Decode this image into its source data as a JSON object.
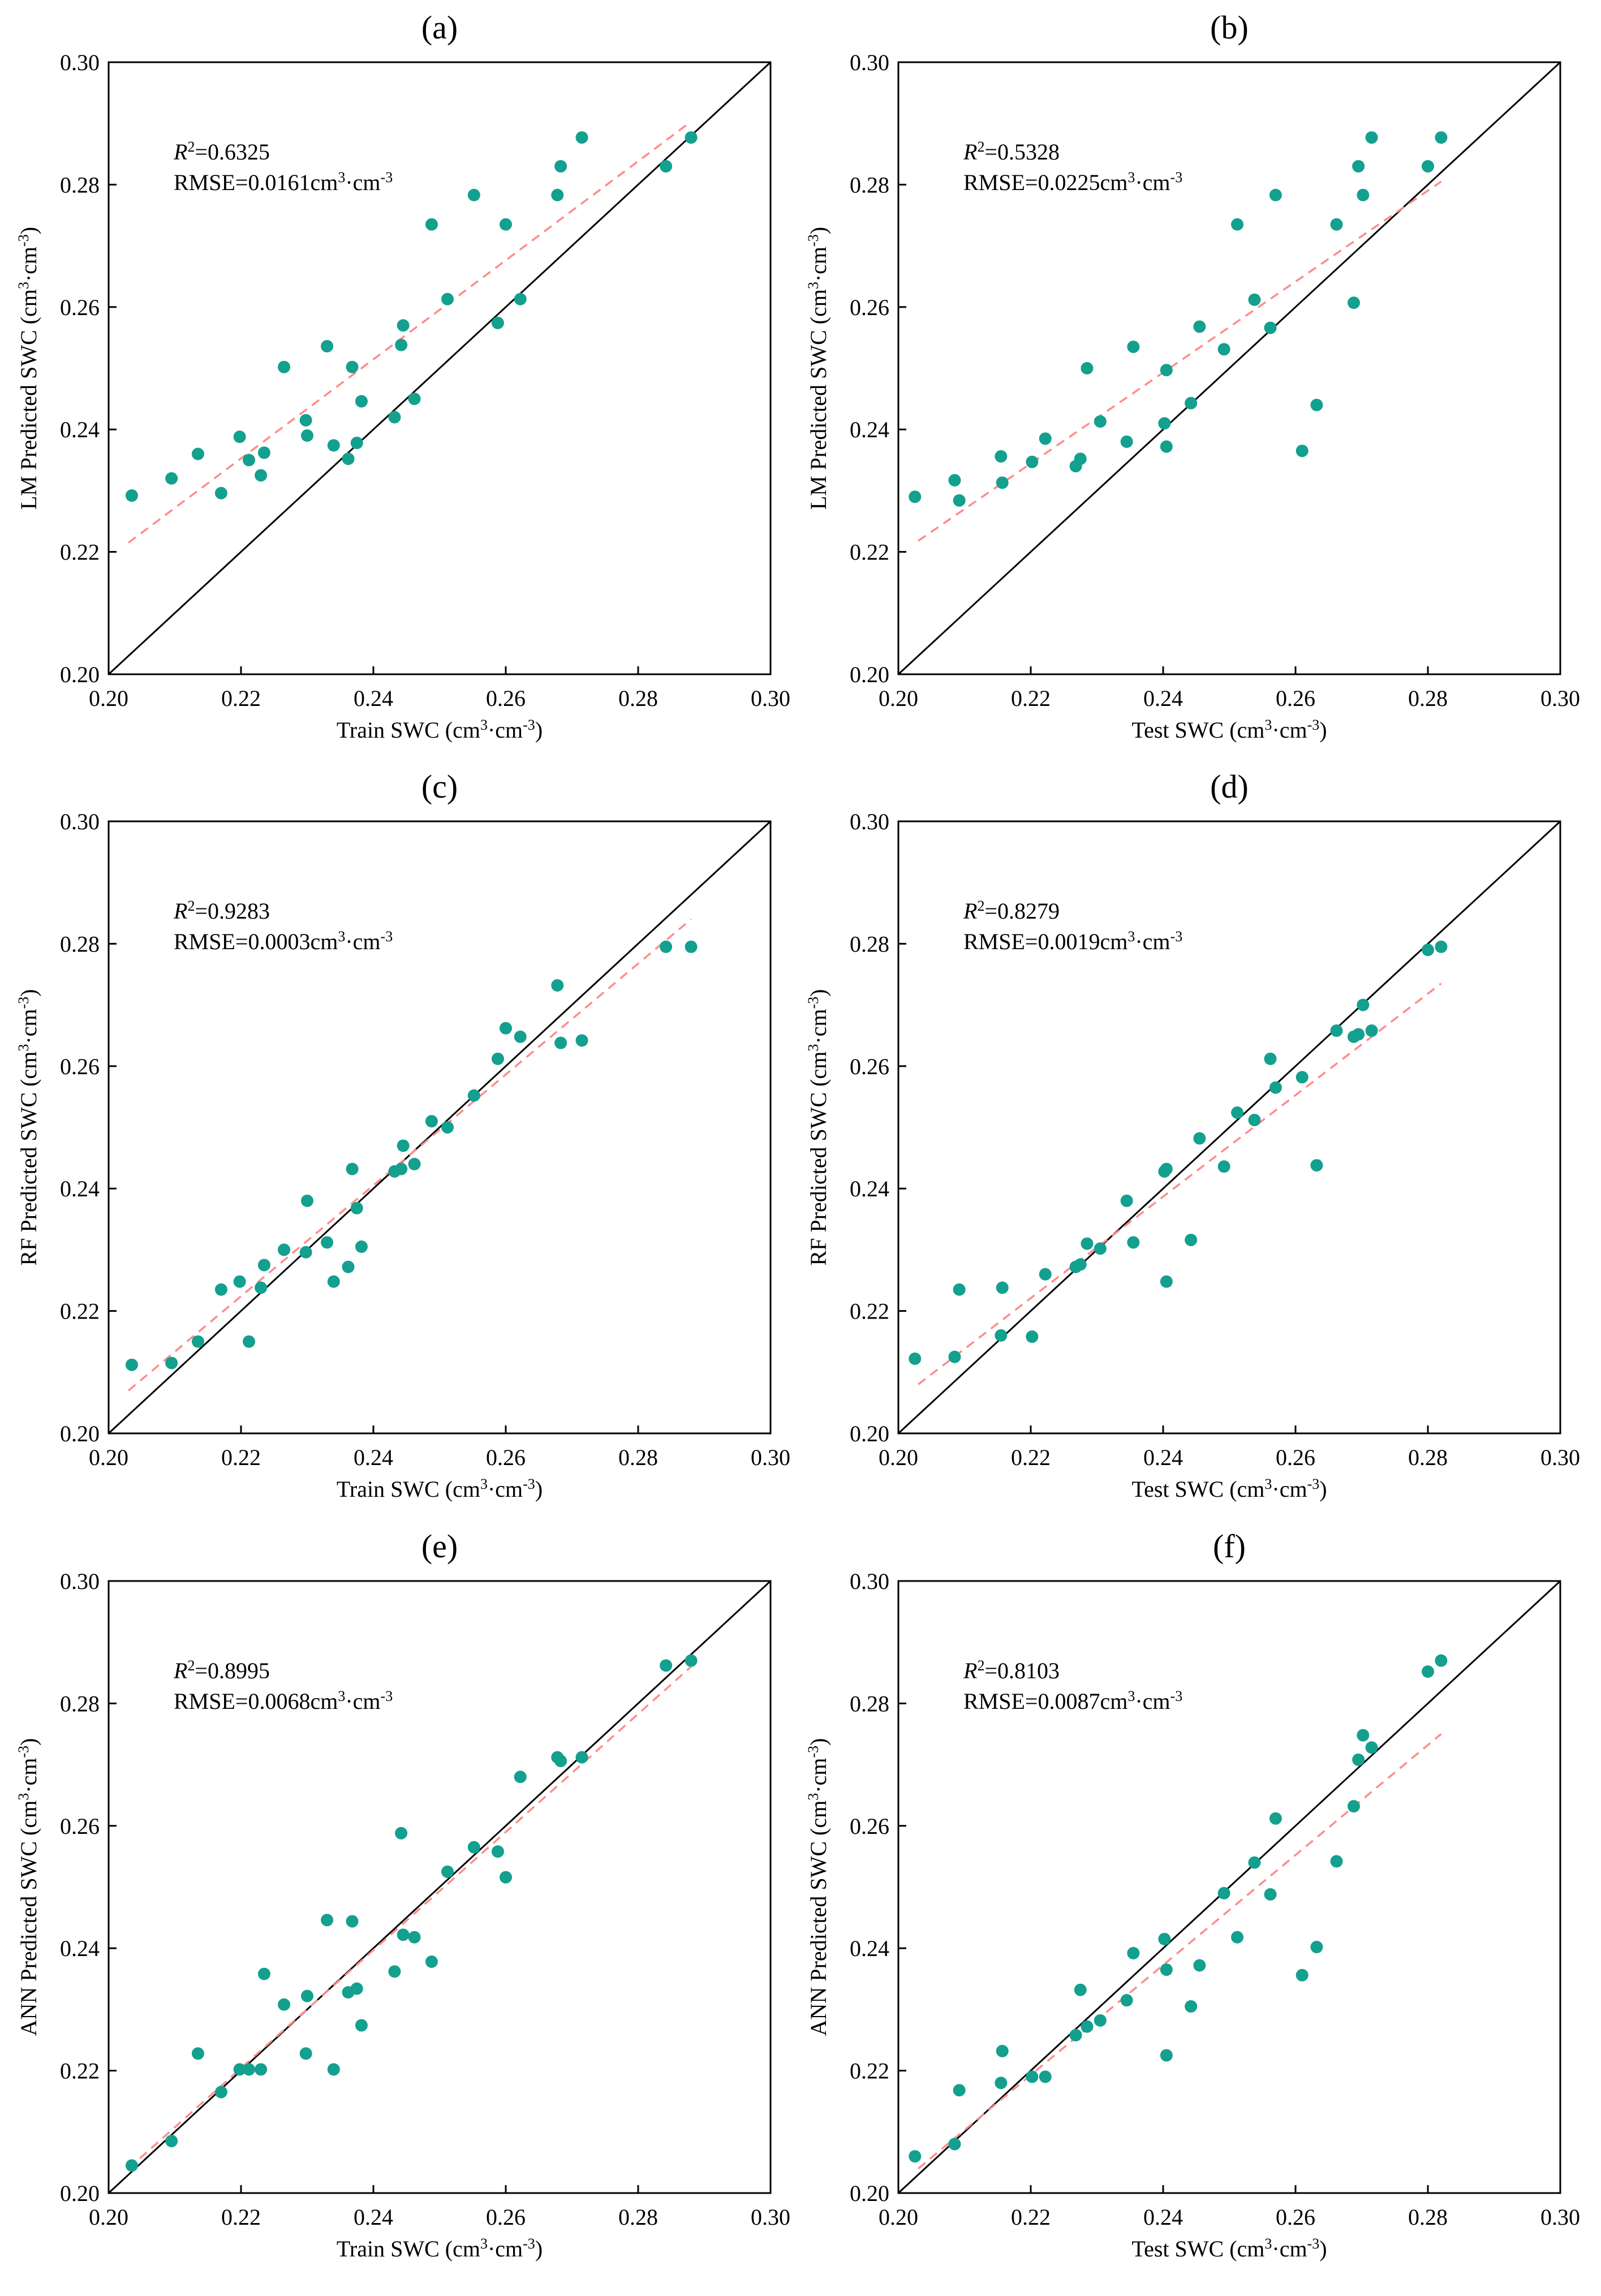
{
  "figure_type": "scatter-panels",
  "axis_unit_text": "cm",
  "axis_unit_sup": "3",
  "axis_unit_sep": "·",
  "chart_data": [
    {
      "id": "a",
      "type": "scatter",
      "label": "(a)",
      "xlabel_prefix": "Train  SWC",
      "ylabel_prefix": "LM Predicted SWC",
      "r2_label": "R",
      "r2_value": "=0.6325",
      "rmse_text": "RMSE=0.0161cm",
      "xlim": [
        0.2,
        0.3
      ],
      "ylim": [
        0.2,
        0.3
      ],
      "xticks": [
        "0.20",
        "0.22",
        "0.24",
        "0.26",
        "0.28",
        "0.30"
      ],
      "yticks": [
        "0.20",
        "0.22",
        "0.24",
        "0.26",
        "0.28",
        "0.30"
      ],
      "fit": {
        "x": [
          0.203,
          0.288
        ],
        "y": [
          0.2215,
          0.2903
        ]
      },
      "points": [
        [
          0.2035,
          0.2292
        ],
        [
          0.2095,
          0.232
        ],
        [
          0.2135,
          0.236
        ],
        [
          0.217,
          0.2296
        ],
        [
          0.2198,
          0.2388
        ],
        [
          0.2212,
          0.235
        ],
        [
          0.223,
          0.2325
        ],
        [
          0.2235,
          0.2362
        ],
        [
          0.2265,
          0.2502
        ],
        [
          0.2298,
          0.2415
        ],
        [
          0.23,
          0.239
        ],
        [
          0.233,
          0.2536
        ],
        [
          0.234,
          0.2374
        ],
        [
          0.2362,
          0.2352
        ],
        [
          0.2368,
          0.2502
        ],
        [
          0.2375,
          0.2378
        ],
        [
          0.2382,
          0.2446
        ],
        [
          0.2432,
          0.242
        ],
        [
          0.2442,
          0.2538
        ],
        [
          0.2445,
          0.257
        ],
        [
          0.2462,
          0.245
        ],
        [
          0.2488,
          0.2735
        ],
        [
          0.2512,
          0.2613
        ],
        [
          0.2552,
          0.2783
        ],
        [
          0.2588,
          0.2574
        ],
        [
          0.26,
          0.2735
        ],
        [
          0.2622,
          0.2613
        ],
        [
          0.2678,
          0.2783
        ],
        [
          0.2683,
          0.283
        ],
        [
          0.2715,
          0.2877
        ],
        [
          0.2842,
          0.283
        ],
        [
          0.288,
          0.2877
        ]
      ]
    },
    {
      "id": "b",
      "type": "scatter",
      "label": "(b)",
      "xlabel_prefix": "Test  SWC",
      "ylabel_prefix": "LM Predicted SWC",
      "r2_label": "R",
      "r2_value": "=0.5328",
      "rmse_text": "RMSE=0.0225cm",
      "xlim": [
        0.2,
        0.3
      ],
      "ylim": [
        0.2,
        0.3
      ],
      "xticks": [
        "0.20",
        "0.22",
        "0.24",
        "0.26",
        "0.28",
        "0.30"
      ],
      "yticks": [
        "0.20",
        "0.22",
        "0.24",
        "0.26",
        "0.28",
        "0.30"
      ],
      "fit": {
        "x": [
          0.203,
          0.282
        ],
        "y": [
          0.2218,
          0.2805
        ]
      },
      "points": [
        [
          0.2025,
          0.229
        ],
        [
          0.2085,
          0.2317
        ],
        [
          0.2092,
          0.2284
        ],
        [
          0.2155,
          0.2356
        ],
        [
          0.2157,
          0.2313
        ],
        [
          0.2202,
          0.2347
        ],
        [
          0.2222,
          0.2385
        ],
        [
          0.2268,
          0.234
        ],
        [
          0.2275,
          0.2352
        ],
        [
          0.2285,
          0.25
        ],
        [
          0.2305,
          0.2413
        ],
        [
          0.2345,
          0.238
        ],
        [
          0.2355,
          0.2535
        ],
        [
          0.2402,
          0.241
        ],
        [
          0.2405,
          0.2372
        ],
        [
          0.2405,
          0.2497
        ],
        [
          0.2442,
          0.2443
        ],
        [
          0.2455,
          0.2568
        ],
        [
          0.2492,
          0.2531
        ],
        [
          0.2512,
          0.2735
        ],
        [
          0.2538,
          0.2612
        ],
        [
          0.2562,
          0.2566
        ],
        [
          0.257,
          0.2783
        ],
        [
          0.261,
          0.2365
        ],
        [
          0.2632,
          0.244
        ],
        [
          0.2662,
          0.2735
        ],
        [
          0.2688,
          0.2607
        ],
        [
          0.2695,
          0.283
        ],
        [
          0.2702,
          0.2783
        ],
        [
          0.2715,
          0.2877
        ],
        [
          0.28,
          0.283
        ],
        [
          0.282,
          0.2877
        ]
      ]
    },
    {
      "id": "c",
      "type": "scatter",
      "label": "(c)",
      "xlabel_prefix": "Train  SWC",
      "ylabel_prefix": "RF Predicted SWC",
      "r2_label": "R",
      "r2_value": "=0.9283",
      "rmse_text": "RMSE=0.0003cm",
      "xlim": [
        0.2,
        0.3
      ],
      "ylim": [
        0.2,
        0.3
      ],
      "xticks": [
        "0.20",
        "0.22",
        "0.24",
        "0.26",
        "0.28",
        "0.30"
      ],
      "yticks": [
        "0.20",
        "0.22",
        "0.24",
        "0.26",
        "0.28",
        "0.30"
      ],
      "fit": {
        "x": [
          0.203,
          0.288
        ],
        "y": [
          0.207,
          0.284
        ]
      },
      "points": [
        [
          0.2035,
          0.2112
        ],
        [
          0.2095,
          0.2115
        ],
        [
          0.2135,
          0.215
        ],
        [
          0.217,
          0.2235
        ],
        [
          0.2198,
          0.2248
        ],
        [
          0.2212,
          0.215
        ],
        [
          0.223,
          0.2238
        ],
        [
          0.2235,
          0.2275
        ],
        [
          0.2265,
          0.23
        ],
        [
          0.2298,
          0.2296
        ],
        [
          0.23,
          0.238
        ],
        [
          0.233,
          0.2312
        ],
        [
          0.234,
          0.2248
        ],
        [
          0.2362,
          0.2272
        ],
        [
          0.2368,
          0.2432
        ],
        [
          0.2375,
          0.2368
        ],
        [
          0.2382,
          0.2305
        ],
        [
          0.2432,
          0.2428
        ],
        [
          0.2442,
          0.2432
        ],
        [
          0.2445,
          0.247
        ],
        [
          0.2462,
          0.244
        ],
        [
          0.2488,
          0.251
        ],
        [
          0.2512,
          0.25
        ],
        [
          0.2552,
          0.2552
        ],
        [
          0.2588,
          0.2612
        ],
        [
          0.26,
          0.2662
        ],
        [
          0.2622,
          0.2648
        ],
        [
          0.2678,
          0.2732
        ],
        [
          0.2683,
          0.2638
        ],
        [
          0.2715,
          0.2642
        ],
        [
          0.2842,
          0.2795
        ],
        [
          0.288,
          0.2795
        ]
      ]
    },
    {
      "id": "d",
      "type": "scatter",
      "label": "(d)",
      "xlabel_prefix": "Test  SWC",
      "ylabel_prefix": "RF Predicted SWC",
      "r2_label": "R",
      "r2_value": "=0.8279",
      "rmse_text": "RMSE=0.0019cm",
      "xlim": [
        0.2,
        0.3
      ],
      "ylim": [
        0.2,
        0.3
      ],
      "xticks": [
        "0.20",
        "0.22",
        "0.24",
        "0.26",
        "0.28",
        "0.30"
      ],
      "yticks": [
        "0.20",
        "0.22",
        "0.24",
        "0.26",
        "0.28",
        "0.30"
      ],
      "fit": {
        "x": [
          0.203,
          0.282
        ],
        "y": [
          0.208,
          0.2735
        ]
      },
      "points": [
        [
          0.2025,
          0.2122
        ],
        [
          0.2085,
          0.2125
        ],
        [
          0.2092,
          0.2235
        ],
        [
          0.2155,
          0.216
        ],
        [
          0.2157,
          0.2238
        ],
        [
          0.2202,
          0.2158
        ],
        [
          0.2222,
          0.226
        ],
        [
          0.2268,
          0.2272
        ],
        [
          0.2275,
          0.2276
        ],
        [
          0.2285,
          0.231
        ],
        [
          0.2305,
          0.2302
        ],
        [
          0.2345,
          0.238
        ],
        [
          0.2355,
          0.2312
        ],
        [
          0.2402,
          0.2428
        ],
        [
          0.2405,
          0.2432
        ],
        [
          0.2405,
          0.2248
        ],
        [
          0.2442,
          0.2316
        ],
        [
          0.2455,
          0.2482
        ],
        [
          0.2492,
          0.2436
        ],
        [
          0.2512,
          0.2524
        ],
        [
          0.2538,
          0.2512
        ],
        [
          0.2562,
          0.2612
        ],
        [
          0.257,
          0.2565
        ],
        [
          0.261,
          0.2582
        ],
        [
          0.2632,
          0.2438
        ],
        [
          0.2662,
          0.2658
        ],
        [
          0.2688,
          0.2648
        ],
        [
          0.2695,
          0.2652
        ],
        [
          0.2702,
          0.27
        ],
        [
          0.2715,
          0.2658
        ],
        [
          0.28,
          0.279
        ],
        [
          0.282,
          0.2795
        ]
      ]
    },
    {
      "id": "e",
      "type": "scatter",
      "label": "(e)",
      "xlabel_prefix": "Train  SWC",
      "ylabel_prefix": "ANN Predicted SWC",
      "r2_label": "R",
      "r2_value": "=0.8995",
      "rmse_text": "RMSE=0.0068cm",
      "xlim": [
        0.2,
        0.3
      ],
      "ylim": [
        0.2,
        0.3
      ],
      "xticks": [
        "0.20",
        "0.22",
        "0.24",
        "0.26",
        "0.28",
        "0.30"
      ],
      "yticks": [
        "0.20",
        "0.22",
        "0.24",
        "0.26",
        "0.28",
        "0.30"
      ],
      "fit": {
        "x": [
          0.203,
          0.288
        ],
        "y": [
          0.204,
          0.286
        ]
      },
      "points": [
        [
          0.2035,
          0.2045
        ],
        [
          0.2095,
          0.2085
        ],
        [
          0.2135,
          0.2228
        ],
        [
          0.217,
          0.2165
        ],
        [
          0.2198,
          0.2202
        ],
        [
          0.2212,
          0.2202
        ],
        [
          0.223,
          0.2202
        ],
        [
          0.2235,
          0.2358
        ],
        [
          0.2265,
          0.2308
        ],
        [
          0.2298,
          0.2228
        ],
        [
          0.23,
          0.2322
        ],
        [
          0.233,
          0.2446
        ],
        [
          0.234,
          0.2202
        ],
        [
          0.2362,
          0.2328
        ],
        [
          0.2368,
          0.2444
        ],
        [
          0.2375,
          0.2334
        ],
        [
          0.2382,
          0.2274
        ],
        [
          0.2432,
          0.2362
        ],
        [
          0.2442,
          0.2588
        ],
        [
          0.2445,
          0.2422
        ],
        [
          0.2462,
          0.2418
        ],
        [
          0.2488,
          0.2378
        ],
        [
          0.2512,
          0.2525
        ],
        [
          0.2552,
          0.2565
        ],
        [
          0.2588,
          0.2558
        ],
        [
          0.26,
          0.2516
        ],
        [
          0.2622,
          0.268
        ],
        [
          0.2678,
          0.2712
        ],
        [
          0.2683,
          0.2706
        ],
        [
          0.2715,
          0.2712
        ],
        [
          0.2842,
          0.2862
        ],
        [
          0.288,
          0.287
        ]
      ]
    },
    {
      "id": "f",
      "type": "scatter",
      "label": "(f)",
      "xlabel_prefix": "Test  SWC",
      "ylabel_prefix": "ANN Predicted SWC",
      "r2_label": "R",
      "r2_value": "=0.8103",
      "rmse_text": "RMSE=0.0087cm",
      "xlim": [
        0.2,
        0.3
      ],
      "ylim": [
        0.2,
        0.3
      ],
      "xticks": [
        "0.20",
        "0.22",
        "0.24",
        "0.26",
        "0.28",
        "0.30"
      ],
      "yticks": [
        "0.20",
        "0.22",
        "0.24",
        "0.26",
        "0.28",
        "0.30"
      ],
      "fit": {
        "x": [
          0.203,
          0.282
        ],
        "y": [
          0.204,
          0.275
        ]
      },
      "points": [
        [
          0.2025,
          0.206
        ],
        [
          0.2085,
          0.208
        ],
        [
          0.2092,
          0.2168
        ],
        [
          0.2155,
          0.218
        ],
        [
          0.2157,
          0.2232
        ],
        [
          0.2202,
          0.219
        ],
        [
          0.2222,
          0.219
        ],
        [
          0.2268,
          0.2258
        ],
        [
          0.2275,
          0.2332
        ],
        [
          0.2285,
          0.2272
        ],
        [
          0.2305,
          0.2282
        ],
        [
          0.2345,
          0.2315
        ],
        [
          0.2355,
          0.2392
        ],
        [
          0.2402,
          0.2415
        ],
        [
          0.2405,
          0.2365
        ],
        [
          0.2405,
          0.2225
        ],
        [
          0.2442,
          0.2305
        ],
        [
          0.2455,
          0.2372
        ],
        [
          0.2492,
          0.249
        ],
        [
          0.2512,
          0.2418
        ],
        [
          0.2538,
          0.254
        ],
        [
          0.2562,
          0.2488
        ],
        [
          0.257,
          0.2612
        ],
        [
          0.261,
          0.2356
        ],
        [
          0.2632,
          0.2402
        ],
        [
          0.2662,
          0.2542
        ],
        [
          0.2688,
          0.2632
        ],
        [
          0.2695,
          0.2708
        ],
        [
          0.2702,
          0.2748
        ],
        [
          0.2715,
          0.2728
        ],
        [
          0.28,
          0.2852
        ],
        [
          0.282,
          0.287
        ]
      ]
    }
  ]
}
